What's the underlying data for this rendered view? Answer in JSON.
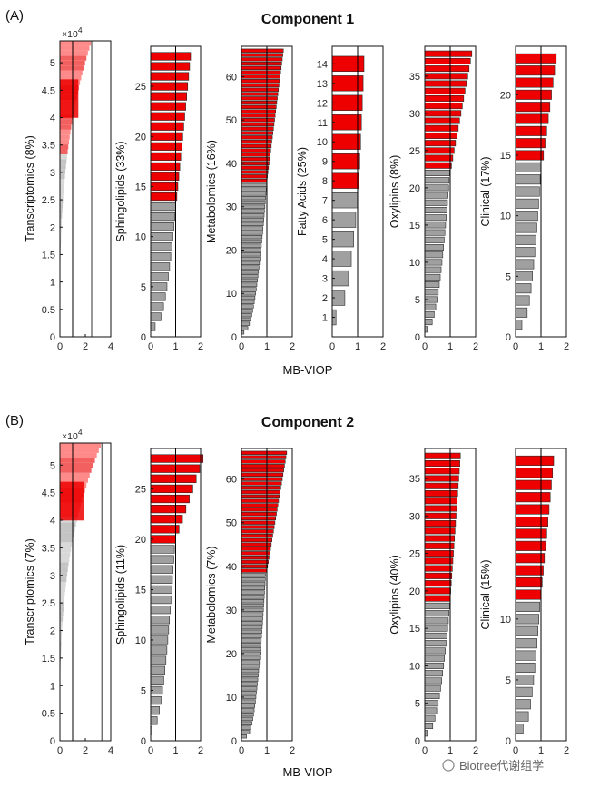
{
  "figure": {
    "sections": [
      {
        "panel_label": "(A)",
        "title": "Component 1",
        "xlabel": "MB-VIOP"
      },
      {
        "panel_label": "(B)",
        "title": "Component 2",
        "xlabel": "MB-VIOP"
      }
    ],
    "watermark": "Biotree代谢组学",
    "multiplier_base": "×10",
    "multiplier_exp": "4"
  },
  "colors": {
    "selected": "#ee0000",
    "not_selected": "#a0a0a0",
    "transcriptomics_selected": "#f26060",
    "transcriptomics_not_selected": "#c4c4c4",
    "threshold_line": "#000000"
  },
  "chart_data": [
    {
      "type": "bar",
      "component": "Component 1",
      "ylabel": "Transcriptomics (8%)",
      "orientation": "horizontal",
      "n_features": 54000,
      "n_selected": 21000,
      "xlim": [
        0,
        4
      ],
      "xticks": [
        "0",
        "2",
        "4"
      ],
      "ylim": [
        0,
        54000
      ],
      "yticks": [
        "0",
        "0.5",
        "1",
        "1.5",
        "2",
        "2.5",
        "3",
        "3.5",
        "4",
        "4.5",
        "5"
      ],
      "ytick_values": [
        0,
        5000,
        10000,
        15000,
        20000,
        25000,
        30000,
        35000,
        40000,
        45000,
        50000
      ],
      "y_multiplier": "×10^4",
      "threshold": 1,
      "max_value": 2.5
    },
    {
      "type": "bar",
      "component": "Component 1",
      "ylabel": "Sphingolipids (33%)",
      "orientation": "horizontal",
      "n_features": 28,
      "n_selected": 15,
      "xlim": [
        0,
        2
      ],
      "xticks": [
        "0",
        "1",
        "2"
      ],
      "ylim": [
        0,
        29
      ],
      "yticks": [
        "0",
        "5",
        "10",
        "15",
        "20",
        "25"
      ],
      "ytick_values": [
        0,
        5,
        10,
        15,
        20,
        25
      ],
      "threshold": 1,
      "selected_range": [
        1.05,
        1.6
      ],
      "not_selected_range": [
        0.18,
        1.0
      ]
    },
    {
      "type": "bar",
      "component": "Component 1",
      "ylabel": "Metabolomics (16%)",
      "orientation": "horizontal",
      "n_features": 66,
      "n_selected": 31,
      "xlim": [
        0,
        2
      ],
      "xticks": [
        "0",
        "1",
        "2"
      ],
      "ylim": [
        0,
        67
      ],
      "yticks": [
        "0",
        "10",
        "20",
        "30",
        "40",
        "50",
        "60"
      ],
      "ytick_values": [
        0,
        10,
        20,
        30,
        40,
        50,
        60
      ],
      "threshold": 1,
      "selected_range": [
        1.0,
        1.65
      ],
      "not_selected_range": [
        0.1,
        0.99
      ]
    },
    {
      "type": "bar",
      "component": "Component 1",
      "ylabel": "Fatty Acids (25%)",
      "orientation": "horizontal",
      "n_features": 14,
      "n_selected": 7,
      "xlim": [
        0,
        2
      ],
      "xticks": [
        "0",
        "1",
        "2"
      ],
      "ylim": [
        0,
        14.9
      ],
      "yticks": [
        "1",
        "2",
        "3",
        "4",
        "5",
        "6",
        "7",
        "8",
        "9",
        "10",
        "11",
        "12",
        "13",
        "14"
      ],
      "ytick_values": [
        1,
        2,
        3,
        4,
        5,
        6,
        7,
        8,
        9,
        10,
        11,
        12,
        13,
        14
      ],
      "threshold": 1,
      "selected_range": [
        1.05,
        1.25
      ],
      "not_selected_range": [
        0.15,
        1.0
      ]
    },
    {
      "type": "bar",
      "component": "Component 1",
      "ylabel": "Oxylipins (8%)",
      "orientation": "horizontal",
      "n_features": 38,
      "n_selected": 16,
      "xlim": [
        0,
        2
      ],
      "xticks": [
        "0",
        "1",
        "2"
      ],
      "ylim": [
        0,
        39
      ],
      "yticks": [
        "0",
        "5",
        "10",
        "15",
        "20",
        "25",
        "30",
        "35"
      ],
      "ytick_values": [
        0,
        5,
        10,
        15,
        20,
        25,
        30,
        35
      ],
      "threshold": 1,
      "selected_range": [
        1.05,
        1.85
      ],
      "not_selected_range": [
        0.1,
        0.98
      ]
    },
    {
      "type": "bar",
      "component": "Component 1",
      "ylabel": "Clinical (17%)",
      "orientation": "horizontal",
      "n_features": 23,
      "n_selected": 9,
      "xlim": [
        0,
        2
      ],
      "xticks": [
        "0",
        "1",
        "2"
      ],
      "ylim": [
        0,
        24
      ],
      "yticks": [
        "0",
        "5",
        "10",
        "15",
        "20"
      ],
      "ytick_values": [
        0,
        5,
        10,
        15,
        20
      ],
      "threshold": 1,
      "selected_range": [
        1.1,
        1.6
      ],
      "not_selected_range": [
        0.25,
        1.0
      ]
    },
    {
      "type": "bar",
      "component": "Component 2",
      "ylabel": "Transcriptomics (7%)",
      "orientation": "horizontal",
      "n_features": 54000,
      "n_selected": 13500,
      "xlim": [
        0,
        4
      ],
      "xticks": [
        "0",
        "2",
        "4"
      ],
      "ylim": [
        0,
        54000
      ],
      "yticks": [
        "0",
        "0.5",
        "1",
        "1.5",
        "2",
        "2.5",
        "3",
        "3.5",
        "4",
        "4.5",
        "5"
      ],
      "ytick_values": [
        0,
        5000,
        10000,
        15000,
        20000,
        25000,
        30000,
        35000,
        40000,
        45000,
        50000
      ],
      "y_multiplier": "×10^4",
      "threshold": 1,
      "max_value": 3.3
    },
    {
      "type": "bar",
      "component": "Component 2",
      "ylabel": "Sphingolipids (11%)",
      "orientation": "horizontal",
      "n_features": 28,
      "n_selected": 9,
      "xlim": [
        0,
        2
      ],
      "xticks": [
        "0",
        "1",
        "2"
      ],
      "ylim": [
        0,
        29
      ],
      "yticks": [
        "0",
        "5",
        "10",
        "15",
        "20",
        "25"
      ],
      "ytick_values": [
        0,
        5,
        10,
        15,
        20,
        25
      ],
      "threshold": 1,
      "selected_range": [
        1.0,
        2.1
      ],
      "not_selected_range": [
        0.05,
        0.95
      ]
    },
    {
      "type": "bar",
      "component": "Component 2",
      "ylabel": "Metabolomics (7%)",
      "orientation": "horizontal",
      "n_features": 66,
      "n_selected": 28,
      "xlim": [
        0,
        2
      ],
      "xticks": [
        "0",
        "1",
        "2"
      ],
      "ylim": [
        0,
        67
      ],
      "yticks": [
        "0",
        "10",
        "20",
        "30",
        "40",
        "50",
        "60"
      ],
      "ytick_values": [
        0,
        10,
        20,
        30,
        40,
        50,
        60
      ],
      "threshold": 1,
      "selected_range": [
        1.0,
        1.78
      ],
      "not_selected_range": [
        0.2,
        0.95
      ]
    },
    {
      "type": "bar",
      "component": "Component 2",
      "ylabel": "Oxylipins (40%)",
      "orientation": "horizontal",
      "n_features": 38,
      "n_selected": 20,
      "xlim": [
        0,
        2
      ],
      "xticks": [
        "0",
        "1",
        "2"
      ],
      "ylim": [
        0,
        39
      ],
      "yticks": [
        "0",
        "5",
        "10",
        "15",
        "20",
        "25",
        "30",
        "35"
      ],
      "ytick_values": [
        0,
        5,
        10,
        15,
        20,
        25,
        30,
        35
      ],
      "threshold": 1,
      "selected_range": [
        1.0,
        1.4
      ],
      "not_selected_range": [
        0.1,
        0.98
      ]
    },
    {
      "type": "bar",
      "component": "Component 2",
      "ylabel": "Clinical (15%)",
      "orientation": "horizontal",
      "n_features": 23,
      "n_selected": 12,
      "xlim": [
        0,
        2
      ],
      "xticks": [
        "0",
        "1",
        "2"
      ],
      "ylim": [
        0,
        24
      ],
      "yticks": [
        "0",
        "5",
        "10"
      ],
      "ytick_values": [
        0,
        5,
        10
      ],
      "threshold": 1,
      "selected_range": [
        1.0,
        1.5
      ],
      "not_selected_range": [
        0.3,
        0.95
      ]
    }
  ]
}
